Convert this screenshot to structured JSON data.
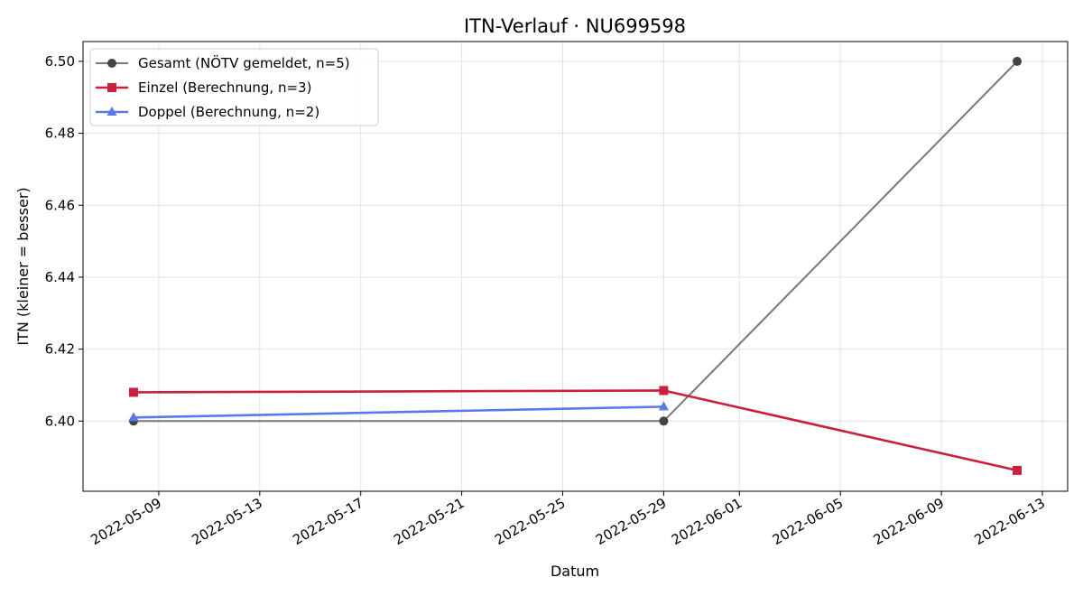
{
  "chart_data": {
    "type": "line",
    "title": "ITN-Verlauf · NU699598",
    "xlabel": "Datum",
    "ylabel": "ITN  (kleiner = besser)",
    "xlim": [
      "2022-05-06",
      "2022-06-14"
    ],
    "ylim": [
      6.3805,
      6.5055
    ],
    "x_ticks": [
      "2022-05-09",
      "2022-05-13",
      "2022-05-17",
      "2022-05-21",
      "2022-05-25",
      "2022-05-29",
      "2022-06-01",
      "2022-06-05",
      "2022-06-09",
      "2022-06-13"
    ],
    "y_ticks": [
      6.4,
      6.42,
      6.44,
      6.46,
      6.48,
      6.5
    ],
    "y_tick_labels": [
      "6.40",
      "6.42",
      "6.44",
      "6.46",
      "6.48",
      "6.50"
    ],
    "grid": true,
    "legend_position": "top-left",
    "series": [
      {
        "name": "Gesamt (NÖTV gemeldet, n=5)",
        "color": "#777777",
        "marker": "circle",
        "points": [
          {
            "x": "2022-05-08",
            "y": 6.4
          },
          {
            "x": "2022-05-29",
            "y": 6.4
          },
          {
            "x": "2022-06-12",
            "y": 6.5
          }
        ]
      },
      {
        "name": "Einzel (Berechnung, n=3)",
        "color": "#c8203e",
        "marker": "square",
        "points": [
          {
            "x": "2022-05-08",
            "y": 6.408
          },
          {
            "x": "2022-05-29",
            "y": 6.4085
          },
          {
            "x": "2022-06-12",
            "y": 6.3863
          }
        ]
      },
      {
        "name": "Doppel (Berechnung, n=2)",
        "color": "#5a79e8",
        "marker": "triangle",
        "points": [
          {
            "x": "2022-05-08",
            "y": 6.401
          },
          {
            "x": "2022-05-29",
            "y": 6.404
          }
        ]
      }
    ]
  }
}
